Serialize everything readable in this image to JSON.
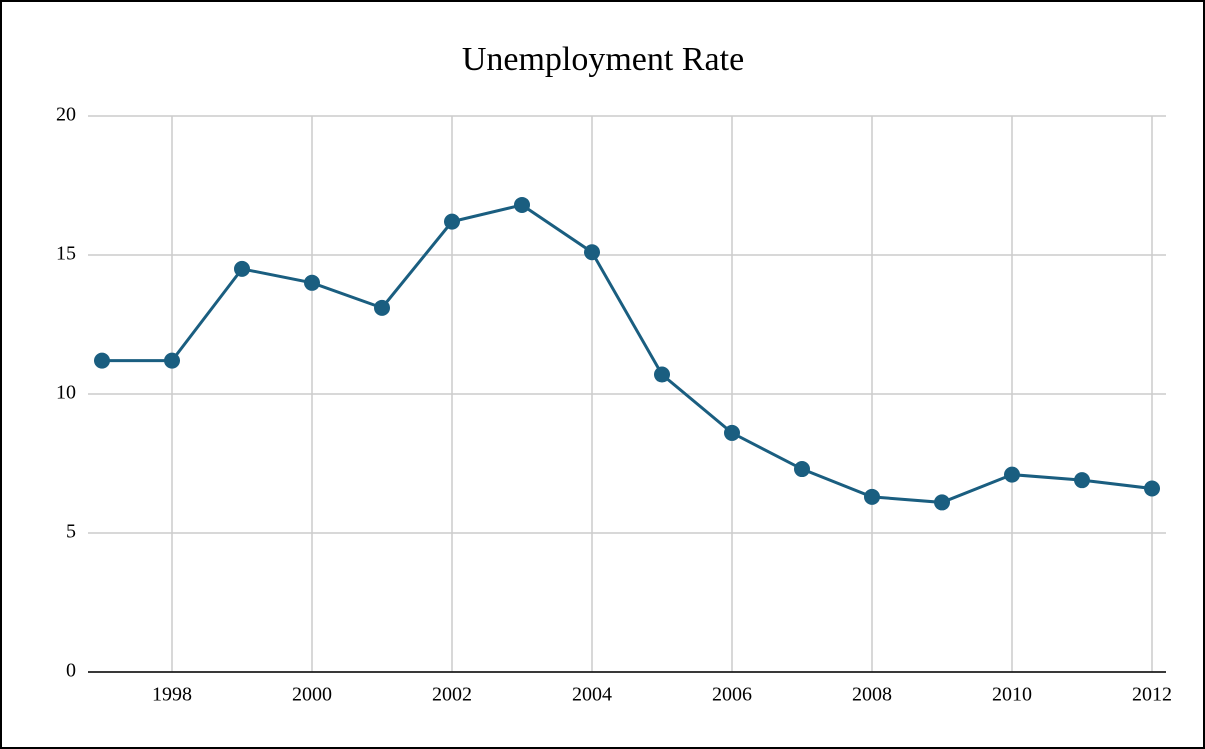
{
  "chart_data": {
    "type": "line",
    "title": "Unemployment Rate",
    "x": [
      1997,
      1998,
      1999,
      2000,
      2001,
      2002,
      2003,
      2004,
      2005,
      2006,
      2007,
      2008,
      2009,
      2010,
      2011,
      2012
    ],
    "series": [
      {
        "name": "Unemployment Rate",
        "color": "#1a5e80",
        "values": [
          11.2,
          11.2,
          14.5,
          14.0,
          13.1,
          16.2,
          16.8,
          15.1,
          10.7,
          8.6,
          7.3,
          6.3,
          6.1,
          7.1,
          6.9,
          6.6
        ]
      }
    ],
    "xlim": [
      1996.8,
      2012.2
    ],
    "xticks": [
      1998,
      2000,
      2002,
      2004,
      2006,
      2008,
      2010,
      2012
    ],
    "ylim": [
      0,
      20
    ],
    "yticks": [
      0,
      5,
      10,
      15,
      20
    ],
    "grid": true
  }
}
